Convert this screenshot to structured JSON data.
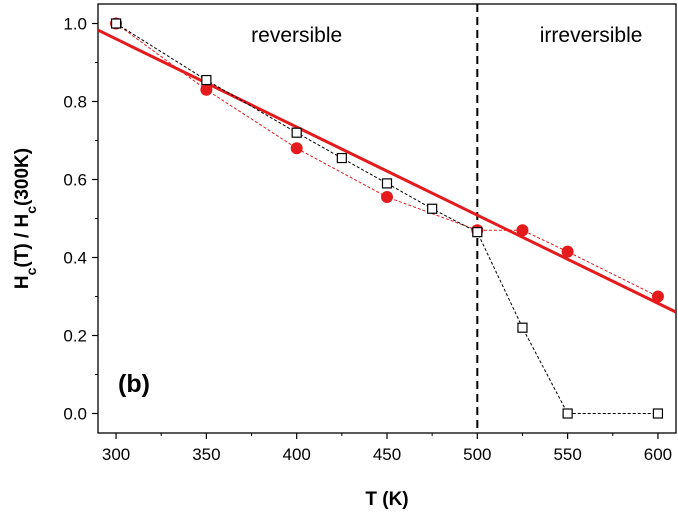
{
  "chart_data": {
    "type": "scatter",
    "panel_label": "(b)",
    "xlabel": "T (K)",
    "ylabel_parts": [
      {
        "text": "H",
        "role": "base"
      },
      {
        "text": "c",
        "role": "sub"
      },
      {
        "text": "(T) / H",
        "role": "base"
      },
      {
        "text": "c",
        "role": "sub"
      },
      {
        "text": "(300K)",
        "role": "base"
      }
    ],
    "xlim": [
      290,
      610
    ],
    "ylim": [
      -0.05,
      1.05
    ],
    "xticks": [
      300,
      350,
      400,
      450,
      500,
      550,
      600
    ],
    "yticks": [
      0.0,
      0.2,
      0.4,
      0.6,
      0.8,
      1.0
    ],
    "ytick_labels": [
      "0.0",
      "0.2",
      "0.4",
      "0.6",
      "0.8",
      "1.0"
    ],
    "regions": [
      {
        "label": "reversible",
        "x_center": 400
      },
      {
        "label": "irreversible",
        "x_center": 563
      }
    ],
    "divider_x": 500,
    "series": [
      {
        "marker": "circle-filled",
        "color": "#e41a1c",
        "connector": "dashed",
        "x": [
          300,
          350,
          400,
          450,
          500,
          525,
          550,
          600
        ],
        "y": [
          1.0,
          0.83,
          0.68,
          0.555,
          0.47,
          0.47,
          0.415,
          0.3
        ]
      },
      {
        "marker": "square-open",
        "color": "#000000",
        "connector": "dashed",
        "x": [
          300,
          350,
          400,
          425,
          450,
          475,
          500,
          525,
          550,
          600
        ],
        "y": [
          1.0,
          0.855,
          0.72,
          0.655,
          0.59,
          0.525,
          0.465,
          0.22,
          0.0,
          0.0
        ]
      }
    ],
    "fit_line": {
      "color": "#e41a1c",
      "x": [
        290,
        610
      ],
      "y": [
        0.983,
        0.26
      ]
    }
  }
}
